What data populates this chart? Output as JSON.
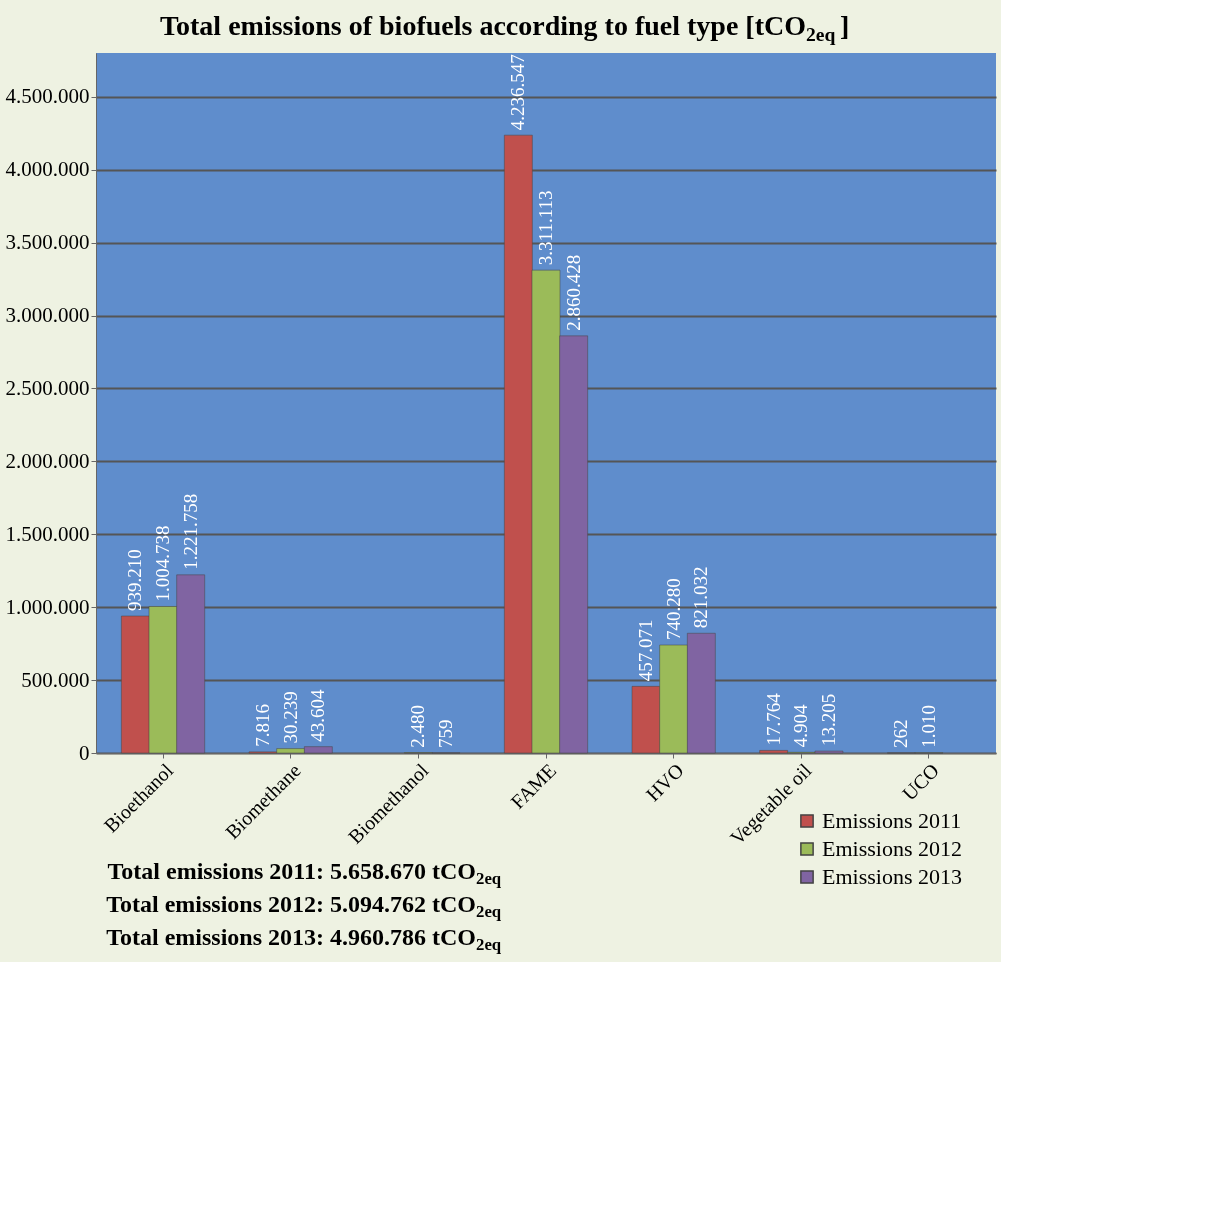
{
  "chart_data": {
    "type": "bar",
    "title": "Total emissions of biofuels according to fuel type [tCO$_{2eq}$]",
    "categories": [
      "Bioethanol",
      "Biomethane",
      "Biomethanol",
      "FAME",
      "HVO",
      "Vegetable oil",
      "UCO"
    ],
    "series": [
      {
        "name": "Emissions 2011",
        "color": "#c0504d",
        "values": [
          939210,
          7816,
          null,
          4236547,
          457071,
          17764,
          262
        ],
        "value_labels": [
          "939.210",
          "7.816",
          null,
          "4.236.547",
          "457.071",
          "17.764",
          "262"
        ]
      },
      {
        "name": "Emissions 2012",
        "color": "#9bbb59",
        "values": [
          1004738,
          30239,
          2480,
          3311113,
          740280,
          4904,
          1010
        ],
        "value_labels": [
          "1.004.738",
          "30.239",
          "2.480",
          "3.311.113",
          "740.280",
          "4.904",
          "1.010"
        ]
      },
      {
        "name": "Emissions 2013",
        "color": "#8064a2",
        "values": [
          1221758,
          43604,
          759,
          2860428,
          821032,
          13205,
          null
        ],
        "value_labels": [
          "1.221.758",
          "43.604",
          "759",
          "2.860.428",
          "821.032",
          "13.205",
          null
        ]
      }
    ],
    "ylim": [
      0,
      4800000
    ],
    "yticks": [
      0,
      {
        "value": 500000,
        "label": "500.000"
      },
      {
        "value": 1000000,
        "label": "1.000.000"
      },
      {
        "value": 1500000,
        "label": "1.500.000"
      },
      {
        "value": 2000000,
        "label": "2.000.000"
      },
      {
        "value": 2500000,
        "label": "2.500.000"
      },
      {
        "value": 3000000,
        "label": "3.000.000"
      },
      {
        "value": 3500000,
        "label": "3.500.000"
      },
      {
        "value": 4000000,
        "label": "4.000.000"
      },
      {
        "value": 4500000,
        "label": "4.500.000"
      }
    ],
    "grid": "y",
    "legend": "bottom right",
    "annotations": [
      "Total emissions 2011: 5.658.670 tCO$_{2eq}$",
      "Total emissions 2012: 5.094.762 tCO$_{2eq}$",
      "Total emissions 2013: 4.960.786 tCO$_{2eq}$"
    ]
  }
}
